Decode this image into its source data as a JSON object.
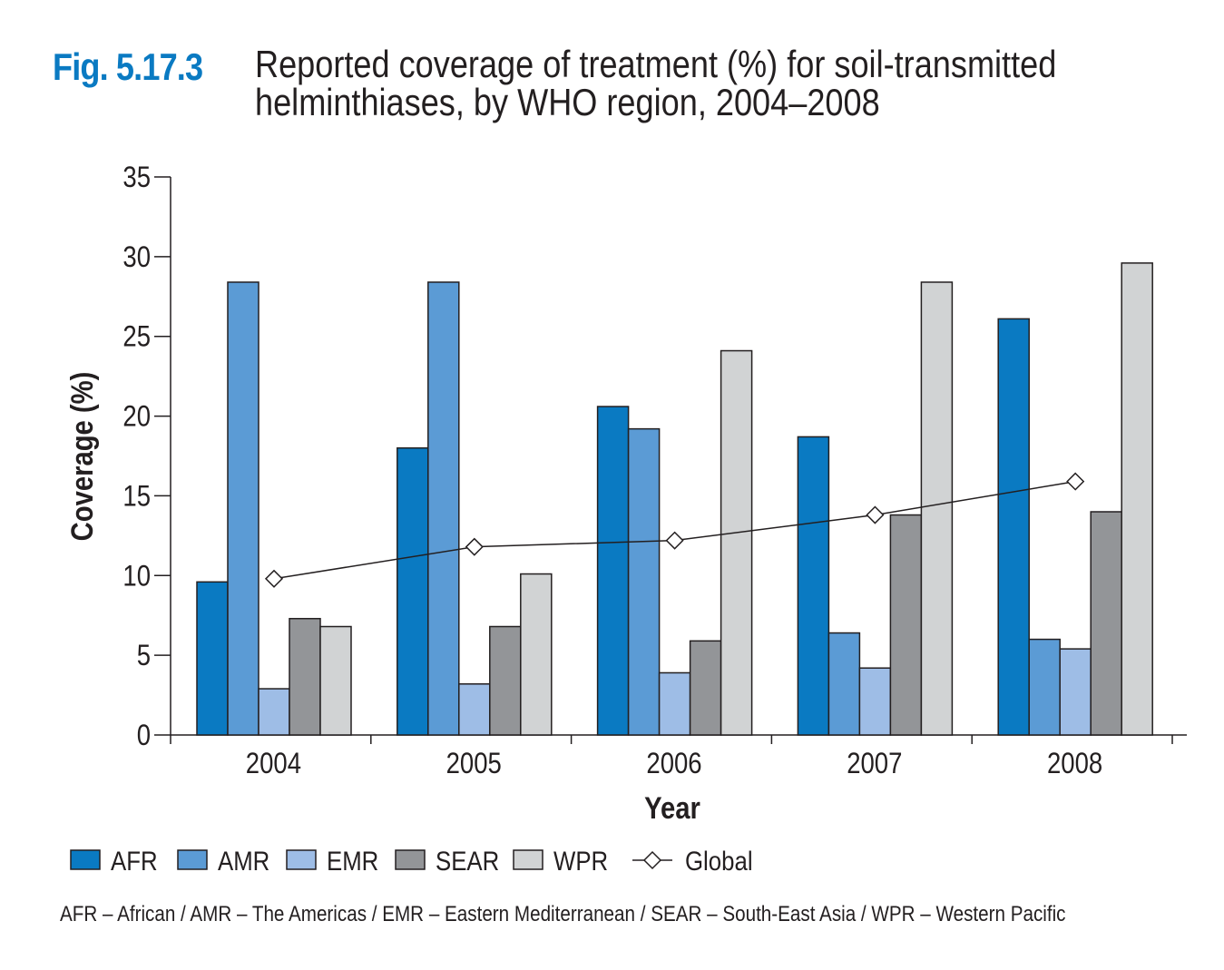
{
  "figure": {
    "label": "Fig. 5.17.3",
    "title": "Reported coverage of treatment (%) for soil-transmitted helminthiases, by WHO region, 2004–2008"
  },
  "footnote": "AFR – African / AMR – The Americas / EMR – Eastern Mediterranean / SEAR – South-East Asia / WPR – Western Pacific",
  "colors": {
    "AFR": "#0a7ac2",
    "AMR": "#5b9bd5",
    "EMR": "#9ebde6",
    "SEAR": "#939598",
    "WPR": "#d1d3d4",
    "Global": "#231f20"
  },
  "chart_data": {
    "type": "bar",
    "title": "Reported coverage of treatment (%) for soil-transmitted helminthiases, by WHO region, 2004–2008",
    "xlabel": "Year",
    "ylabel": "Coverage (%)",
    "ylim": [
      0,
      35
    ],
    "yticks": [
      0,
      5,
      10,
      15,
      20,
      25,
      30,
      35
    ],
    "categories": [
      "2004",
      "2005",
      "2006",
      "2007",
      "2008"
    ],
    "series": [
      {
        "name": "AFR",
        "values": [
          9.6,
          18.0,
          20.6,
          18.7,
          26.1
        ]
      },
      {
        "name": "AMR",
        "values": [
          28.4,
          28.4,
          19.2,
          6.4,
          6.0
        ]
      },
      {
        "name": "EMR",
        "values": [
          2.9,
          3.2,
          3.9,
          4.2,
          5.4
        ]
      },
      {
        "name": "SEAR",
        "values": [
          7.3,
          6.8,
          5.9,
          13.8,
          14.0
        ]
      },
      {
        "name": "WPR",
        "values": [
          6.8,
          10.1,
          24.1,
          28.4,
          29.6
        ]
      }
    ],
    "line_series": [
      {
        "name": "Global",
        "values": [
          9.8,
          11.8,
          12.2,
          13.8,
          15.9
        ],
        "marker": "diamond"
      }
    ],
    "grid": false,
    "legend": "bottom"
  }
}
